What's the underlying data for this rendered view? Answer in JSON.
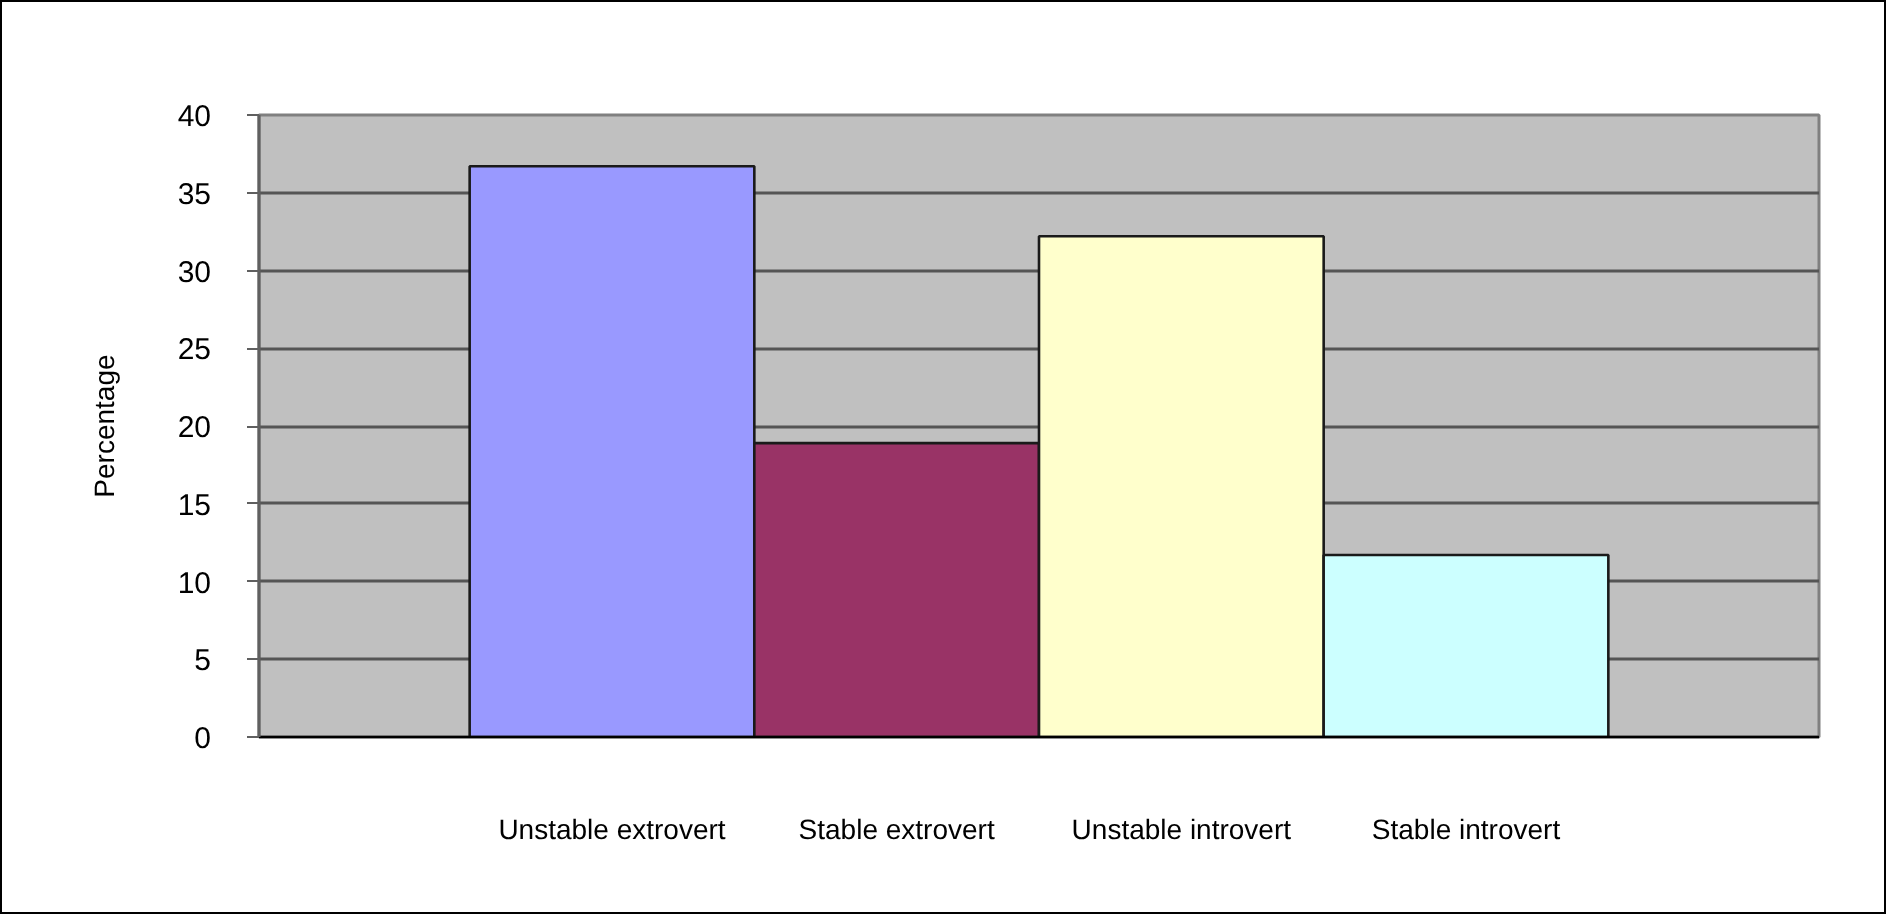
{
  "chart_data": {
    "type": "bar",
    "ylabel": "Percentage",
    "categories": [
      "Unstable extrovert",
      "Stable extrovert",
      "Unstable introvert",
      "Stable introvert"
    ],
    "colors": [
      "#9999ff",
      "#993366",
      "#ffffcc",
      "#ccffff"
    ],
    "values": [
      36.7,
      18.9,
      32.2,
      11.7
    ],
    "ylim": [
      0,
      40
    ],
    "yticks": [
      0,
      5,
      10,
      15,
      20,
      25,
      30,
      35,
      40
    ],
    "grid": "y"
  }
}
